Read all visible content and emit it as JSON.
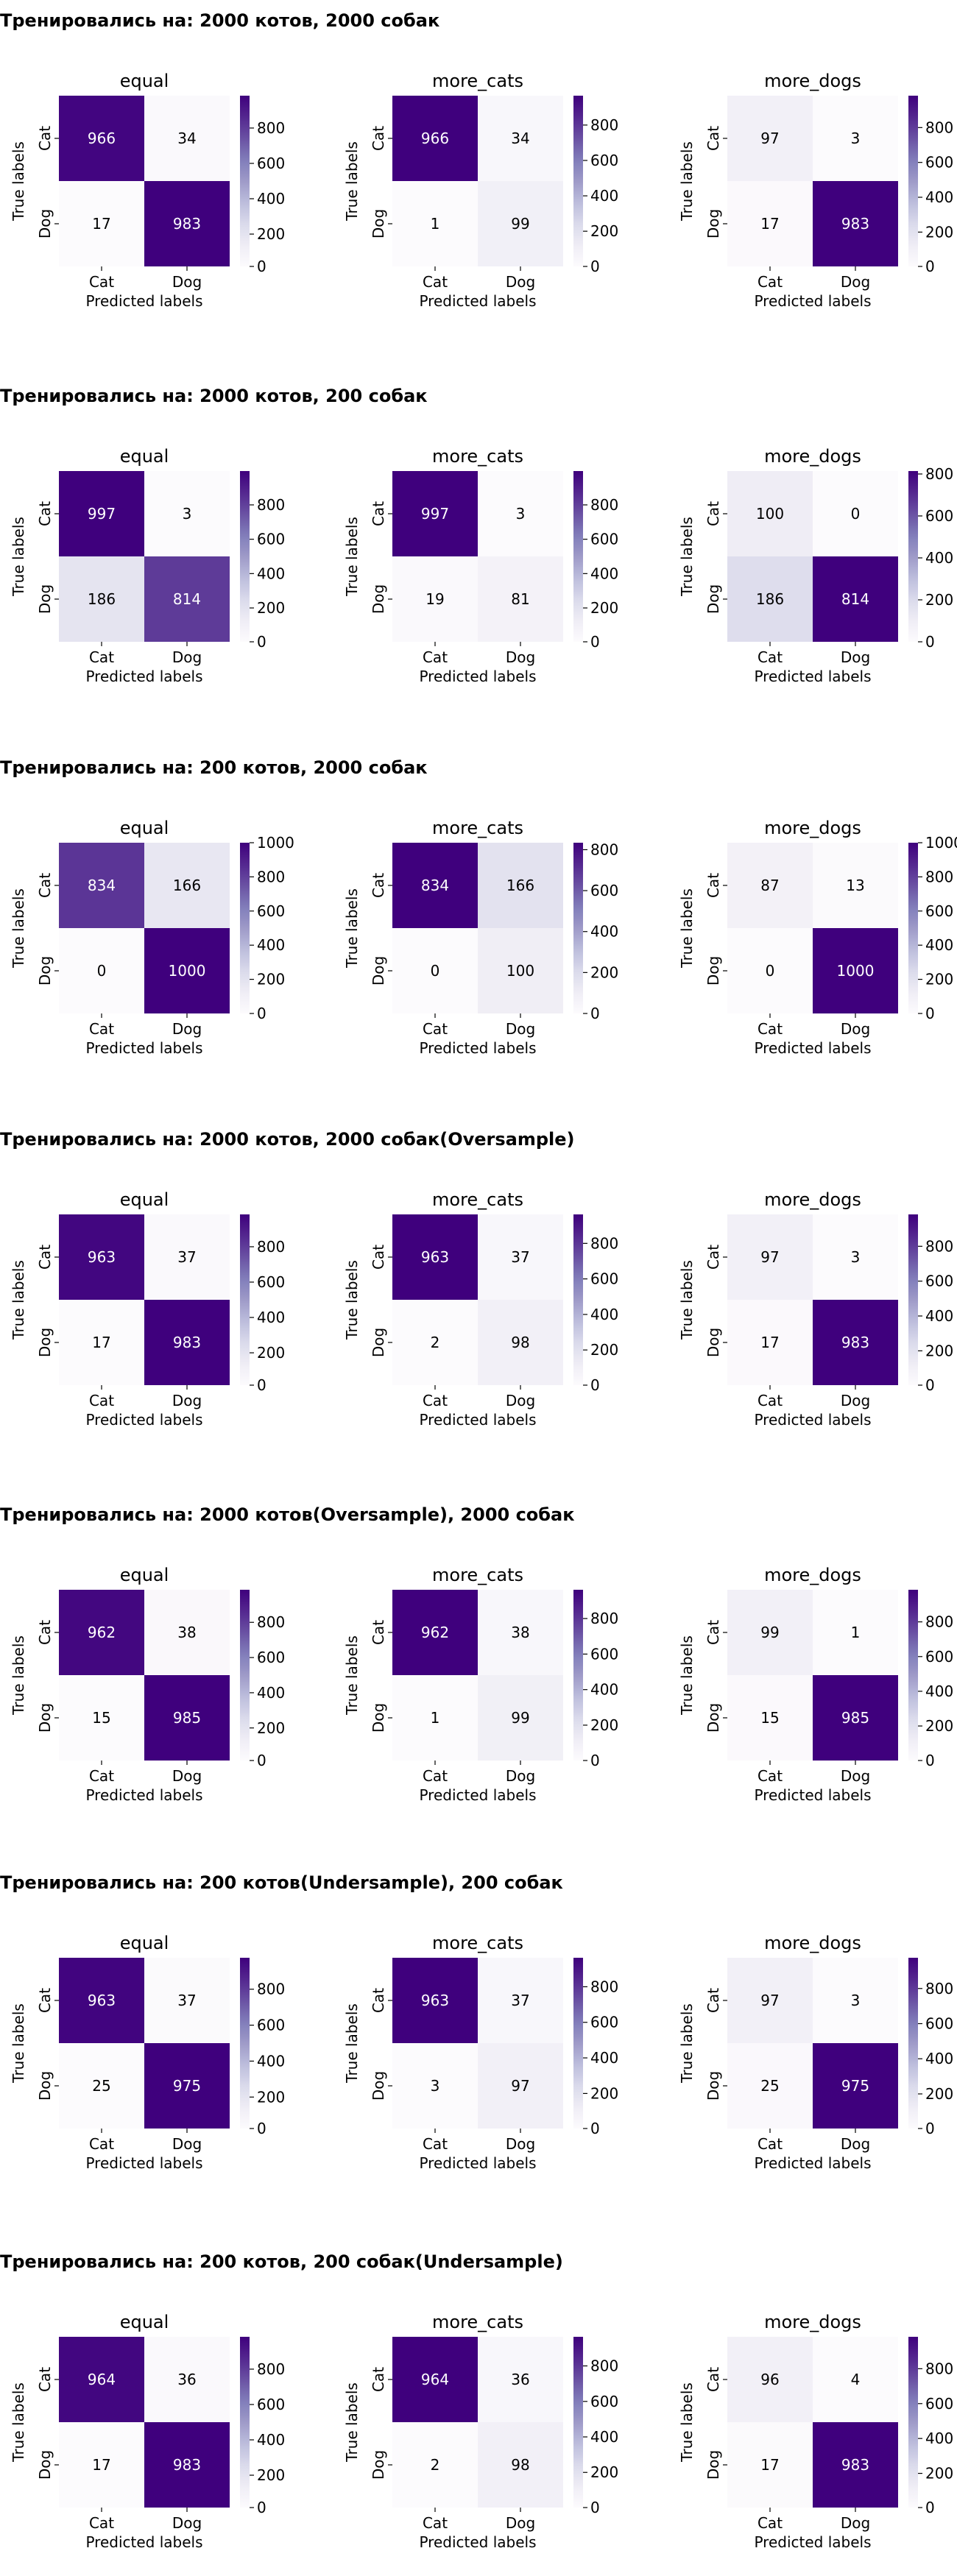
{
  "colorscale": {
    "low": "#fcfbfd",
    "high": "#3f007d",
    "text_dark": "#000000",
    "text_light": "#ffffff"
  },
  "shared": {
    "xlabel": "Predicted labels",
    "ylabel": "True labels",
    "x_tick_labels": [
      "Cat",
      "Dog"
    ],
    "y_tick_labels": [
      "Cat",
      "Dog"
    ],
    "panel_titles": [
      "equal",
      "more_cats",
      "more_dogs"
    ]
  },
  "sections": [
    {
      "title": "Тренировались на: 2000 котов, 2000 собак"
    },
    {
      "title": "Тренировались на: 2000 котов, 200 собак"
    },
    {
      "title": "Тренировались на: 200 котов, 2000 собак"
    },
    {
      "title": "Тренировались на: 2000 котов, 2000 собак(Oversample)"
    },
    {
      "title": "Тренировались на: 2000 котов(Oversample), 2000 собак"
    },
    {
      "title": "Тренировались на: 200 котов(Undersample), 200 собак"
    },
    {
      "title": "Тренировались на: 200 котов, 200 собак(Undersample)"
    }
  ],
  "chart_data": [
    {
      "type": "heatmap",
      "section": 0,
      "title": "equal",
      "values": [
        [
          966,
          34
        ],
        [
          17,
          983
        ]
      ],
      "colorbar_ticks": [
        0,
        200,
        400,
        600,
        800
      ],
      "vmin": 17,
      "vmax": 983
    },
    {
      "type": "heatmap",
      "section": 0,
      "title": "more_cats",
      "values": [
        [
          966,
          34
        ],
        [
          1,
          99
        ]
      ],
      "colorbar_ticks": [
        0,
        200,
        400,
        600,
        800
      ],
      "vmin": 1,
      "vmax": 966
    },
    {
      "type": "heatmap",
      "section": 0,
      "title": "more_dogs",
      "values": [
        [
          97,
          3
        ],
        [
          17,
          983
        ]
      ],
      "colorbar_ticks": [
        0,
        200,
        400,
        600,
        800
      ],
      "vmin": 3,
      "vmax": 983
    },
    {
      "type": "heatmap",
      "section": 1,
      "title": "equal",
      "values": [
        [
          997,
          3
        ],
        [
          186,
          814
        ]
      ],
      "colorbar_ticks": [
        0,
        200,
        400,
        600,
        800
      ],
      "vmin": 3,
      "vmax": 997
    },
    {
      "type": "heatmap",
      "section": 1,
      "title": "more_cats",
      "values": [
        [
          997,
          3
        ],
        [
          19,
          81
        ]
      ],
      "colorbar_ticks": [
        0,
        200,
        400,
        600,
        800
      ],
      "vmin": 3,
      "vmax": 997
    },
    {
      "type": "heatmap",
      "section": 1,
      "title": "more_dogs",
      "values": [
        [
          100,
          0
        ],
        [
          186,
          814
        ]
      ],
      "colorbar_ticks": [
        0,
        200,
        400,
        600,
        800
      ],
      "vmin": 0,
      "vmax": 814
    },
    {
      "type": "heatmap",
      "section": 2,
      "title": "equal",
      "values": [
        [
          834,
          166
        ],
        [
          0,
          1000
        ]
      ],
      "colorbar_ticks": [
        0,
        200,
        400,
        600,
        800,
        1000
      ],
      "vmin": 0,
      "vmax": 1000
    },
    {
      "type": "heatmap",
      "section": 2,
      "title": "more_cats",
      "values": [
        [
          834,
          166
        ],
        [
          0,
          100
        ]
      ],
      "colorbar_ticks": [
        0,
        200,
        400,
        600,
        800
      ],
      "vmin": 0,
      "vmax": 834
    },
    {
      "type": "heatmap",
      "section": 2,
      "title": "more_dogs",
      "values": [
        [
          87,
          13
        ],
        [
          0,
          1000
        ]
      ],
      "colorbar_ticks": [
        0,
        200,
        400,
        600,
        800,
        1000
      ],
      "vmin": 0,
      "vmax": 1000
    },
    {
      "type": "heatmap",
      "section": 3,
      "title": "equal",
      "values": [
        [
          963,
          37
        ],
        [
          17,
          983
        ]
      ],
      "colorbar_ticks": [
        0,
        200,
        400,
        600,
        800
      ],
      "vmin": 17,
      "vmax": 983
    },
    {
      "type": "heatmap",
      "section": 3,
      "title": "more_cats",
      "values": [
        [
          963,
          37
        ],
        [
          2,
          98
        ]
      ],
      "colorbar_ticks": [
        0,
        200,
        400,
        600,
        800
      ],
      "vmin": 2,
      "vmax": 963
    },
    {
      "type": "heatmap",
      "section": 3,
      "title": "more_dogs",
      "values": [
        [
          97,
          3
        ],
        [
          17,
          983
        ]
      ],
      "colorbar_ticks": [
        0,
        200,
        400,
        600,
        800
      ],
      "vmin": 3,
      "vmax": 983
    },
    {
      "type": "heatmap",
      "section": 4,
      "title": "equal",
      "values": [
        [
          962,
          38
        ],
        [
          15,
          985
        ]
      ],
      "colorbar_ticks": [
        0,
        200,
        400,
        600,
        800
      ],
      "vmin": 15,
      "vmax": 985
    },
    {
      "type": "heatmap",
      "section": 4,
      "title": "more_cats",
      "values": [
        [
          962,
          38
        ],
        [
          1,
          99
        ]
      ],
      "colorbar_ticks": [
        0,
        200,
        400,
        600,
        800
      ],
      "vmin": 1,
      "vmax": 962
    },
    {
      "type": "heatmap",
      "section": 4,
      "title": "more_dogs",
      "values": [
        [
          99,
          1
        ],
        [
          15,
          985
        ]
      ],
      "colorbar_ticks": [
        0,
        200,
        400,
        600,
        800
      ],
      "vmin": 1,
      "vmax": 985
    },
    {
      "type": "heatmap",
      "section": 5,
      "title": "equal",
      "values": [
        [
          963,
          37
        ],
        [
          25,
          975
        ]
      ],
      "colorbar_ticks": [
        0,
        200,
        400,
        600,
        800
      ],
      "vmin": 25,
      "vmax": 975
    },
    {
      "type": "heatmap",
      "section": 5,
      "title": "more_cats",
      "values": [
        [
          963,
          37
        ],
        [
          3,
          97
        ]
      ],
      "colorbar_ticks": [
        0,
        200,
        400,
        600,
        800
      ],
      "vmin": 3,
      "vmax": 963
    },
    {
      "type": "heatmap",
      "section": 5,
      "title": "more_dogs",
      "values": [
        [
          97,
          3
        ],
        [
          25,
          975
        ]
      ],
      "colorbar_ticks": [
        0,
        200,
        400,
        600,
        800
      ],
      "vmin": 3,
      "vmax": 975
    },
    {
      "type": "heatmap",
      "section": 6,
      "title": "equal",
      "values": [
        [
          964,
          36
        ],
        [
          17,
          983
        ]
      ],
      "colorbar_ticks": [
        0,
        200,
        400,
        600,
        800
      ],
      "vmin": 17,
      "vmax": 983
    },
    {
      "type": "heatmap",
      "section": 6,
      "title": "more_cats",
      "values": [
        [
          964,
          36
        ],
        [
          2,
          98
        ]
      ],
      "colorbar_ticks": [
        0,
        200,
        400,
        600,
        800
      ],
      "vmin": 2,
      "vmax": 964
    },
    {
      "type": "heatmap",
      "section": 6,
      "title": "more_dogs",
      "values": [
        [
          96,
          4
        ],
        [
          17,
          983
        ]
      ],
      "colorbar_ticks": [
        0,
        200,
        400,
        600,
        800
      ],
      "vmin": 4,
      "vmax": 983
    }
  ]
}
